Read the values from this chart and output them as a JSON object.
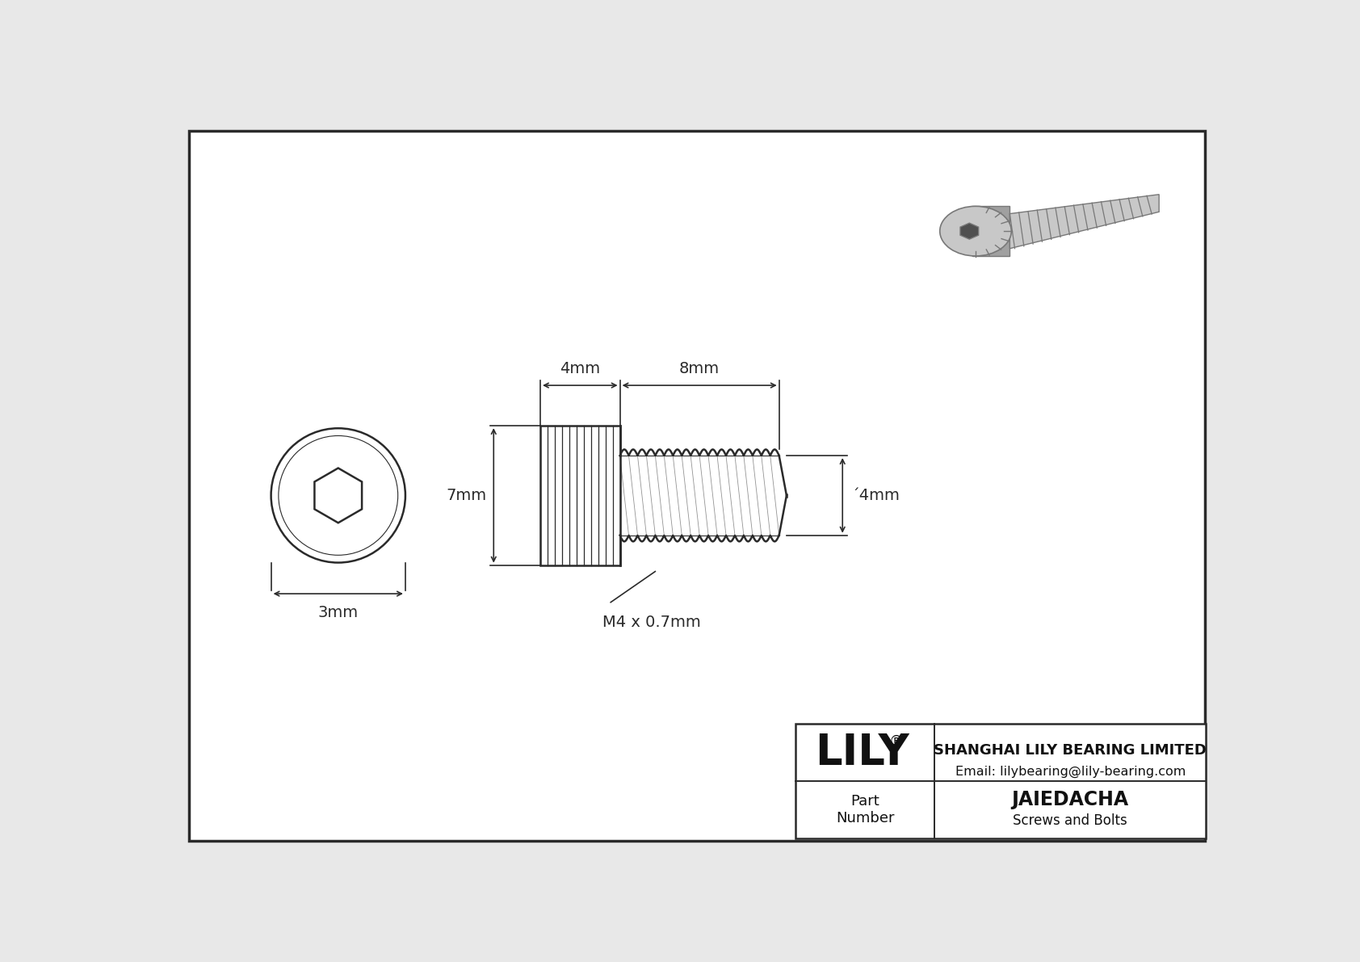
{
  "bg_color": "#e8e8e8",
  "inner_bg": "#f8f8f8",
  "line_color": "#2a2a2a",
  "title": "JAIEDACHA",
  "subtitle": "Screws and Bolts",
  "company": "SHANGHAI LILY BEARING LIMITED",
  "email": "Email: lilybearing@lily-bearing.com",
  "part_label": "Part\nNumber",
  "dim_head_length": "4mm",
  "dim_shaft_length": "8mm",
  "dim_height": "7mm",
  "dim_diameter": "΄4mm",
  "dim_hex": "3mm",
  "thread_label": "M4 x 0.7mm",
  "fig_w": 16.84,
  "fig_h": 11.91,
  "dpi": 100
}
